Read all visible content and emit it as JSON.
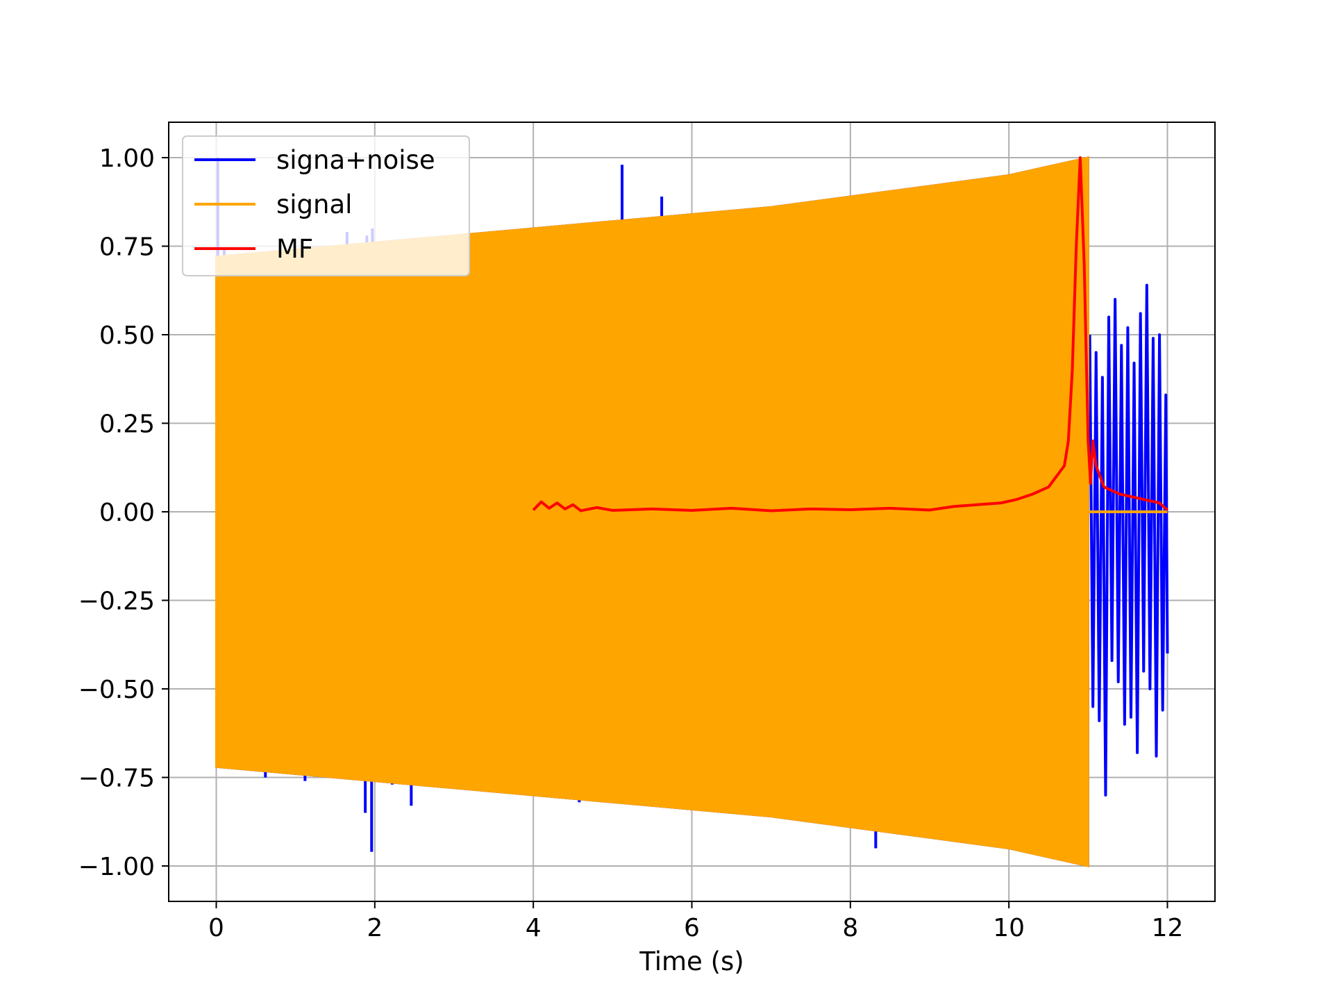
{
  "chart_data": {
    "type": "line",
    "title": "",
    "xlabel": "Time (s)",
    "ylabel": "",
    "xlim": [
      -0.6,
      12.6
    ],
    "ylim": [
      -1.1,
      1.1
    ],
    "xticks": [
      0,
      2,
      4,
      6,
      8,
      10,
      12
    ],
    "xtick_labels": [
      "0",
      "2",
      "4",
      "6",
      "8",
      "10",
      "12"
    ],
    "yticks": [
      1.0,
      0.75,
      0.5,
      0.25,
      0.0,
      -0.25,
      -0.5,
      -0.75,
      -1.0
    ],
    "ytick_labels": [
      "1.00",
      "0.75",
      "0.50",
      "0.25",
      "0.00",
      "−0.25",
      "−0.50",
      "−0.75",
      "−1.00"
    ],
    "grid": true,
    "legend_position": "top-left",
    "series": [
      {
        "name": "signa+noise",
        "color": "#0000ff",
        "envelope": {
          "x": [
            0.0,
            1.0,
            2.0,
            3.0,
            4.0,
            5.0,
            6.0,
            7.0,
            8.0,
            9.0,
            10.0,
            11.0
          ],
          "upper": [
            0.72,
            0.74,
            0.76,
            0.78,
            0.8,
            0.82,
            0.84,
            0.86,
            0.89,
            0.92,
            0.95,
            1.0
          ],
          "lower": [
            -0.72,
            -0.74,
            -0.76,
            -0.78,
            -0.8,
            -0.82,
            -0.84,
            -0.86,
            -0.89,
            -0.92,
            -0.95,
            -1.0
          ]
        },
        "spikes": [
          {
            "x": 0.02,
            "y": 1.0
          },
          {
            "x": 0.1,
            "y": 0.74
          },
          {
            "x": 1.65,
            "y": 0.79
          },
          {
            "x": 1.9,
            "y": 0.78
          },
          {
            "x": 1.97,
            "y": 0.8
          },
          {
            "x": 3.65,
            "y": 0.78
          },
          {
            "x": 5.0,
            "y": 0.82
          },
          {
            "x": 5.12,
            "y": 0.98
          },
          {
            "x": 5.62,
            "y": 0.89
          },
          {
            "x": 0.62,
            "y": -0.75
          },
          {
            "x": 1.12,
            "y": -0.76
          },
          {
            "x": 1.88,
            "y": -0.85
          },
          {
            "x": 1.96,
            "y": -0.96
          },
          {
            "x": 2.22,
            "y": -0.77
          },
          {
            "x": 2.46,
            "y": -0.83
          },
          {
            "x": 3.5,
            "y": -0.77
          },
          {
            "x": 4.58,
            "y": -0.82
          },
          {
            "x": 5.05,
            "y": -0.81
          },
          {
            "x": 5.78,
            "y": -0.83
          },
          {
            "x": 6.95,
            "y": -0.85
          },
          {
            "x": 8.32,
            "y": -0.95
          }
        ],
        "tail": [
          {
            "x": 11.02,
            "y": 0.5
          },
          {
            "x": 11.06,
            "y": -0.55
          },
          {
            "x": 11.1,
            "y": 0.45
          },
          {
            "x": 11.14,
            "y": -0.59
          },
          {
            "x": 11.18,
            "y": 0.38
          },
          {
            "x": 11.22,
            "y": -0.8
          },
          {
            "x": 11.26,
            "y": 0.55
          },
          {
            "x": 11.3,
            "y": -0.42
          },
          {
            "x": 11.34,
            "y": 0.6
          },
          {
            "x": 11.38,
            "y": -0.48
          },
          {
            "x": 11.42,
            "y": 0.47
          },
          {
            "x": 11.46,
            "y": -0.6
          },
          {
            "x": 11.5,
            "y": 0.52
          },
          {
            "x": 11.54,
            "y": -0.58
          },
          {
            "x": 11.58,
            "y": 0.42
          },
          {
            "x": 11.62,
            "y": -0.68
          },
          {
            "x": 11.66,
            "y": 0.56
          },
          {
            "x": 11.7,
            "y": -0.45
          },
          {
            "x": 11.74,
            "y": 0.64
          },
          {
            "x": 11.78,
            "y": -0.5
          },
          {
            "x": 11.82,
            "y": 0.49
          },
          {
            "x": 11.86,
            "y": -0.69
          },
          {
            "x": 11.9,
            "y": 0.5
          },
          {
            "x": 11.94,
            "y": -0.56
          },
          {
            "x": 11.98,
            "y": 0.33
          },
          {
            "x": 12.0,
            "y": -0.4
          }
        ]
      },
      {
        "name": "signal",
        "color": "#ffa500",
        "envelope": {
          "x": [
            0.0,
            1.0,
            2.0,
            3.0,
            4.0,
            5.0,
            6.0,
            7.0,
            8.0,
            9.0,
            10.0,
            11.0
          ],
          "upper": [
            0.72,
            0.74,
            0.76,
            0.78,
            0.8,
            0.82,
            0.84,
            0.86,
            0.89,
            0.92,
            0.95,
            1.0
          ],
          "lower": [
            -0.72,
            -0.74,
            -0.76,
            -0.78,
            -0.8,
            -0.82,
            -0.84,
            -0.86,
            -0.89,
            -0.92,
            -0.95,
            -1.0
          ]
        },
        "after_end": {
          "x": [
            11.0,
            12.0
          ],
          "y": [
            0.0,
            0.0
          ]
        }
      },
      {
        "name": "MF",
        "color": "#ff0000",
        "x": [
          4.0,
          4.1,
          4.2,
          4.3,
          4.4,
          4.5,
          4.6,
          4.8,
          5.0,
          5.5,
          6.0,
          6.5,
          7.0,
          7.5,
          8.0,
          8.5,
          9.0,
          9.3,
          9.6,
          9.9,
          10.1,
          10.3,
          10.5,
          10.6,
          10.7,
          10.75,
          10.8,
          10.85,
          10.9,
          10.95,
          11.0,
          11.03,
          11.06,
          11.1,
          11.15,
          11.2,
          11.3,
          11.4,
          11.5,
          11.6,
          11.7,
          11.8,
          11.9,
          12.0
        ],
        "y": [
          0.005,
          0.028,
          0.01,
          0.025,
          0.008,
          0.02,
          0.003,
          0.012,
          0.004,
          0.008,
          0.004,
          0.01,
          0.003,
          0.008,
          0.006,
          0.01,
          0.005,
          0.015,
          0.02,
          0.025,
          0.035,
          0.05,
          0.07,
          0.1,
          0.13,
          0.2,
          0.4,
          0.75,
          1.0,
          0.7,
          0.2,
          0.08,
          0.2,
          0.13,
          0.1,
          0.07,
          0.06,
          0.05,
          0.045,
          0.04,
          0.035,
          0.03,
          0.025,
          0.005
        ]
      }
    ]
  }
}
